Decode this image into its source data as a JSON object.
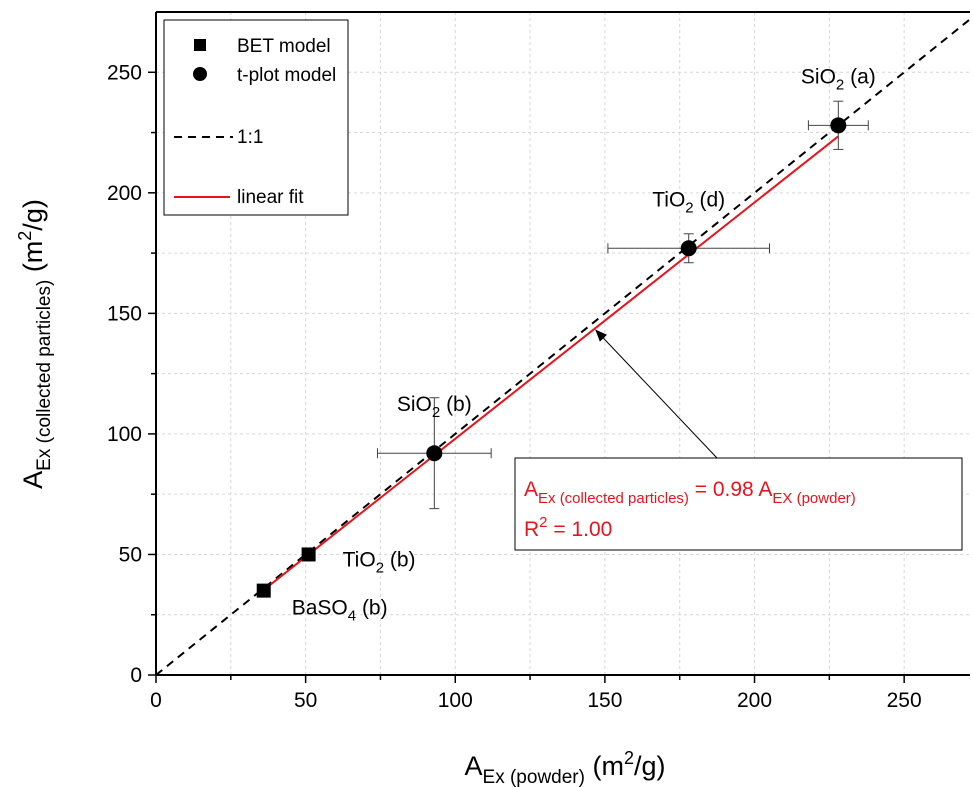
{
  "chart_data": {
    "type": "scatter",
    "xlabel": {
      "base": "A",
      "sub": "Ex (powder)",
      "unit_pre": " (m",
      "unit_sup": "2",
      "unit_post": "/g)"
    },
    "ylabel": {
      "base": "A",
      "sub": "Ex (collected particles)",
      "unit_pre": " (m",
      "unit_sup": "2",
      "unit_post": "/g)"
    },
    "xlim": [
      0,
      272
    ],
    "ylim": [
      0,
      275
    ],
    "xticks": [
      0,
      50,
      100,
      150,
      200,
      250
    ],
    "yticks": [
      0,
      50,
      100,
      150,
      200,
      250
    ],
    "grid": true,
    "legend_position": "top-left",
    "legend": {
      "bet": "BET model",
      "tplot": "t-plot model",
      "ratio": "1:1",
      "fit": "linear fit"
    },
    "series": [
      {
        "name": "BET model",
        "marker": "square",
        "points": [
          {
            "x": 36,
            "y": 35,
            "label": {
              "pre": "BaSO",
              "sub": "4",
              "post": " (b)"
            }
          },
          {
            "x": 51,
            "y": 50,
            "label": {
              "pre": "TiO",
              "sub": "2",
              "post": " (b)"
            }
          }
        ]
      },
      {
        "name": "t-plot model",
        "marker": "circle",
        "points": [
          {
            "x": 93,
            "y": 92,
            "xerr": 19,
            "yerr": 23,
            "label": {
              "pre": "SiO",
              "sub": "2",
              "post": " (b)"
            }
          },
          {
            "x": 178,
            "y": 177,
            "xerr": 27,
            "yerr": 6,
            "label": {
              "pre": "TiO",
              "sub": "2",
              "post": " (d)"
            }
          },
          {
            "x": 228,
            "y": 228,
            "xerr": 10,
            "yerr": 10,
            "label": {
              "pre": "SiO",
              "sub": "2",
              "post": " (a)"
            }
          }
        ]
      }
    ],
    "reference_line": {
      "name": "1:1",
      "slope": 1,
      "color": "#000000",
      "style": "dashed"
    },
    "fit_line": {
      "name": "linear fit",
      "slope": 0.98,
      "x_range": [
        36,
        228
      ],
      "color": "#e8141c"
    },
    "annotation": {
      "eq_base1": "A",
      "eq_sub1": "Ex (collected particles)",
      "eq_mid": " = 0.98 A",
      "eq_sub2": "EX (powder)",
      "r2_pre": "R",
      "r2_sup": "2",
      "r2_post": " = 1.00",
      "color": "#e8141c",
      "arrow_target": {
        "x": 147,
        "y": 143
      }
    }
  }
}
